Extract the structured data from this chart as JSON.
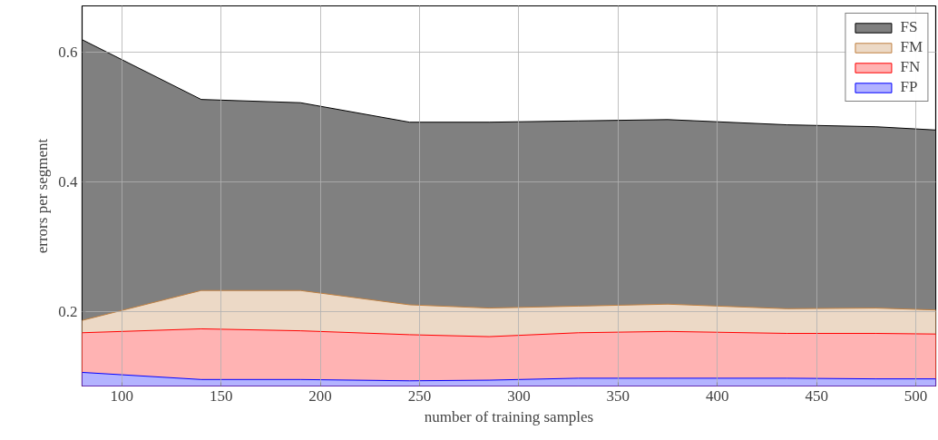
{
  "chart_data": {
    "type": "area",
    "xlabel": "number of training samples",
    "ylabel": "errors per segment",
    "x": [
      80,
      140,
      190,
      245,
      285,
      330,
      375,
      435,
      480,
      510
    ],
    "series": [
      {
        "name": "FS",
        "color": "#808080",
        "values": [
          0.619,
          0.527,
          0.522,
          0.492,
          0.492,
          0.494,
          0.496,
          0.488,
          0.485,
          0.48
        ]
      },
      {
        "name": "FM",
        "color": "#ecd9c6",
        "values": [
          0.187,
          0.233,
          0.233,
          0.211,
          0.206,
          0.209,
          0.212,
          0.205,
          0.206,
          0.203
        ]
      },
      {
        "name": "FN",
        "color": "#ffb3b3",
        "values": [
          0.168,
          0.174,
          0.171,
          0.165,
          0.162,
          0.168,
          0.17,
          0.167,
          0.167,
          0.166
        ]
      },
      {
        "name": "FP",
        "color": "#b3b3ff",
        "values": [
          0.107,
          0.096,
          0.096,
          0.094,
          0.095,
          0.098,
          0.098,
          0.098,
          0.097,
          0.097
        ]
      }
    ],
    "xlim": [
      80,
      510
    ],
    "ylim": [
      0.086,
      0.671
    ],
    "xticks": [
      100,
      150,
      200,
      250,
      300,
      350,
      400,
      450,
      500
    ],
    "yticks": [
      0.2,
      0.4,
      0.6
    ],
    "grid": true,
    "legend": "top right"
  }
}
